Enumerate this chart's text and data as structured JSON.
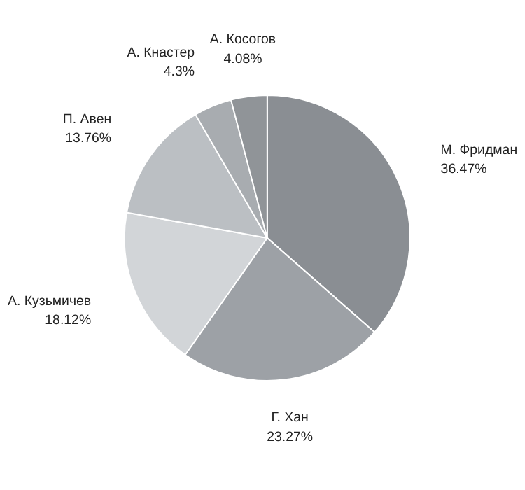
{
  "chart_data": {
    "type": "pie",
    "categories": [
      "М. Фридман",
      "Г. Хан",
      "А. Кузьмичев",
      "П. Авен",
      "А. Кнастер",
      "А. Косогов"
    ],
    "values": [
      36.47,
      23.27,
      18.12,
      13.76,
      4.3,
      4.08
    ],
    "value_labels": [
      "36.47%",
      "23.27%",
      "18.12%",
      "13.76%",
      "4.3%",
      "4.08%"
    ],
    "colors": [
      "#8a8e93",
      "#9da1a6",
      "#d2d5d8",
      "#bbbfc3",
      "#a8acb0",
      "#909498"
    ],
    "legend": false
  }
}
